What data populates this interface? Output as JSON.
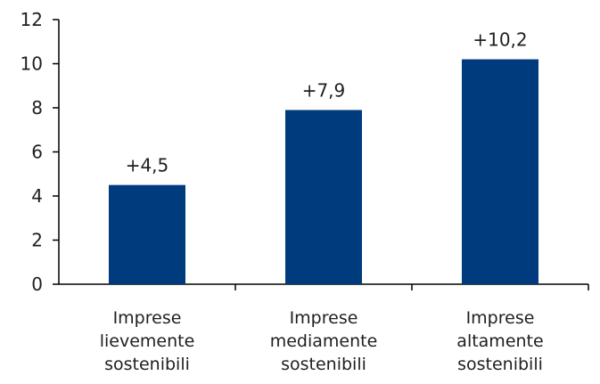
{
  "chart_data": {
    "type": "bar",
    "categories": [
      [
        "Imprese",
        "lievemente",
        "sostenibili"
      ],
      [
        "Imprese",
        "mediamente",
        "sostenibili"
      ],
      [
        "Imprese",
        "altamente",
        "sostenibili"
      ]
    ],
    "values": [
      4.5,
      7.9,
      10.2
    ],
    "data_labels": [
      "+4,5",
      "+7,9",
      "+10,2"
    ],
    "title": "",
    "xlabel": "",
    "ylabel": "",
    "ylim": [
      0,
      12
    ],
    "yticks": [
      0,
      2,
      4,
      6,
      8,
      10,
      12
    ],
    "grid": false,
    "legend": "none",
    "bar_color": "#003C7D",
    "axis_color": "#000000"
  }
}
